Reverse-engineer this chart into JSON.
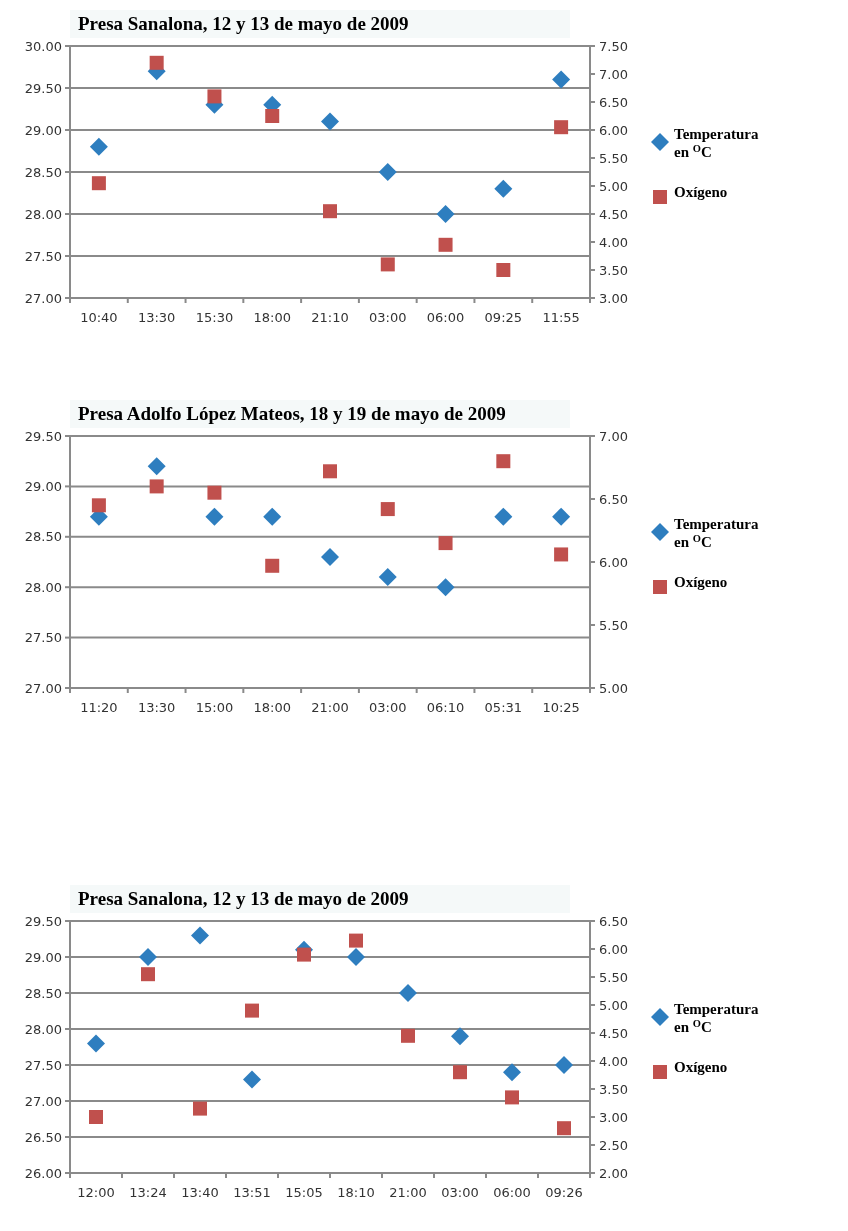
{
  "chart_data": [
    {
      "type": "scatter",
      "title": "Presa Sanalona, 12 y 13 de mayo de 2009",
      "categories": [
        "10:40",
        "13:30",
        "15:30",
        "18:00",
        "21:10",
        "03:00",
        "06:00",
        "09:25",
        "11:55"
      ],
      "series": [
        {
          "name": "Temperatura en $^{O}$C",
          "color": "#2e7ebf",
          "marker": "diamond",
          "values": [
            28.8,
            29.7,
            29.3,
            29.3,
            29.1,
            28.5,
            28.0,
            28.3,
            29.6
          ]
        },
        {
          "name": "Oxígeno",
          "color": "#c0504d",
          "marker": "square",
          "axis": "y2",
          "values": [
            5.05,
            7.2,
            6.6,
            6.25,
            4.55,
            3.6,
            3.95,
            3.5,
            6.05
          ]
        }
      ],
      "ylim": [
        27,
        30
      ],
      "yticks": [
        {
          "value": 27,
          "label": "27.00"
        },
        {
          "value": 27.5,
          "label": "27.50"
        },
        {
          "value": 28,
          "label": "28.00"
        },
        {
          "value": 28.5,
          "label": "28.50"
        },
        {
          "value": 29,
          "label": "29.00"
        },
        {
          "value": 29.5,
          "label": "29.50"
        },
        {
          "value": 30,
          "label": "30.00"
        }
      ],
      "y2lim": [
        3,
        7.5
      ],
      "y2ticks": [
        {
          "value": 3,
          "label": "3.00"
        },
        {
          "value": 3.5,
          "label": "3.50"
        },
        {
          "value": 4,
          "label": "4.00"
        },
        {
          "value": 4.5,
          "label": "4.50"
        },
        {
          "value": 5,
          "label": "5.00"
        },
        {
          "value": 5.5,
          "label": "5.50"
        },
        {
          "value": 6,
          "label": "6.00"
        },
        {
          "value": 6.5,
          "label": "6.50"
        },
        {
          "value": 7,
          "label": "7.00"
        },
        {
          "value": 7.5,
          "label": "7.50"
        }
      ],
      "grid": "y",
      "legend": "right"
    },
    {
      "type": "scatter",
      "title": "Presa Adolfo López Mateos, 18 y 19 de mayo de 2009",
      "categories": [
        "11:20",
        "13:30",
        "15:00",
        "18:00",
        "21:00",
        "03:00",
        "06:10",
        "05:31",
        "10:25"
      ],
      "series": [
        {
          "name": "Temperatura en $^{O}$C",
          "color": "#2e7ebf",
          "marker": "diamond",
          "values": [
            28.7,
            29.2,
            28.7,
            28.7,
            28.3,
            28.1,
            28.0,
            28.7,
            28.7
          ]
        },
        {
          "name": "Oxígeno",
          "color": "#c0504d",
          "marker": "square",
          "axis": "y2",
          "values": [
            6.45,
            6.6,
            6.55,
            5.97,
            6.72,
            6.42,
            6.15,
            6.8,
            6.06
          ]
        }
      ],
      "ylim": [
        27,
        29.5
      ],
      "yticks": [
        {
          "value": 27,
          "label": "27.00"
        },
        {
          "value": 27.5,
          "label": "27.50"
        },
        {
          "value": 28,
          "label": "28.00"
        },
        {
          "value": 28.5,
          "label": "28.50"
        },
        {
          "value": 29,
          "label": "29.00"
        },
        {
          "value": 29.5,
          "label": "29.50"
        }
      ],
      "y2lim": [
        5,
        7
      ],
      "y2ticks": [
        {
          "value": 5,
          "label": "5.00"
        },
        {
          "value": 5.5,
          "label": "5.50"
        },
        {
          "value": 6,
          "label": "6.00"
        },
        {
          "value": 6.5,
          "label": "6.50"
        },
        {
          "value": 7,
          "label": "7.00"
        }
      ],
      "grid": "y",
      "legend": "right"
    },
    {
      "type": "scatter",
      "title": "Presa Sanalona, 12 y 13 de mayo de 2009",
      "categories": [
        "12:00",
        "13:24",
        "13:40",
        "13:51",
        "15:05",
        "18:10",
        "21:00",
        "03:00",
        "06:00",
        "09:26"
      ],
      "series": [
        {
          "name": "Temperatura en $^{O}$C",
          "color": "#2e7ebf",
          "marker": "diamond",
          "values": [
            27.8,
            29.0,
            29.3,
            27.3,
            29.1,
            29.0,
            28.5,
            27.9,
            27.4,
            27.5
          ]
        },
        {
          "name": "Oxígeno",
          "color": "#c0504d",
          "marker": "square",
          "axis": "y2",
          "values": [
            3.0,
            5.55,
            3.15,
            4.9,
            5.9,
            6.15,
            4.45,
            3.8,
            3.35,
            2.8
          ]
        }
      ],
      "ylim": [
        26,
        29.5
      ],
      "yticks": [
        {
          "value": 26,
          "label": "26.00"
        },
        {
          "value": 26.5,
          "label": "26.50"
        },
        {
          "value": 27,
          "label": "27.00"
        },
        {
          "value": 27.5,
          "label": "27.50"
        },
        {
          "value": 28,
          "label": "28.00"
        },
        {
          "value": 28.5,
          "label": "28.50"
        },
        {
          "value": 29,
          "label": "29.00"
        },
        {
          "value": 29.5,
          "label": "29.50"
        }
      ],
      "y2lim": [
        2,
        6.5
      ],
      "y2ticks": [
        {
          "value": 2,
          "label": "2.00"
        },
        {
          "value": 2.5,
          "label": "2.50"
        },
        {
          "value": 3,
          "label": "3.00"
        },
        {
          "value": 3.5,
          "label": "3.50"
        },
        {
          "value": 4,
          "label": "4.00"
        },
        {
          "value": 4.5,
          "label": "4.50"
        },
        {
          "value": 5,
          "label": "5.00"
        },
        {
          "value": 5.5,
          "label": "5.50"
        },
        {
          "value": 6,
          "label": "6.00"
        },
        {
          "value": 6.5,
          "label": "6.50"
        }
      ],
      "grid": "y",
      "legend": "right"
    }
  ]
}
